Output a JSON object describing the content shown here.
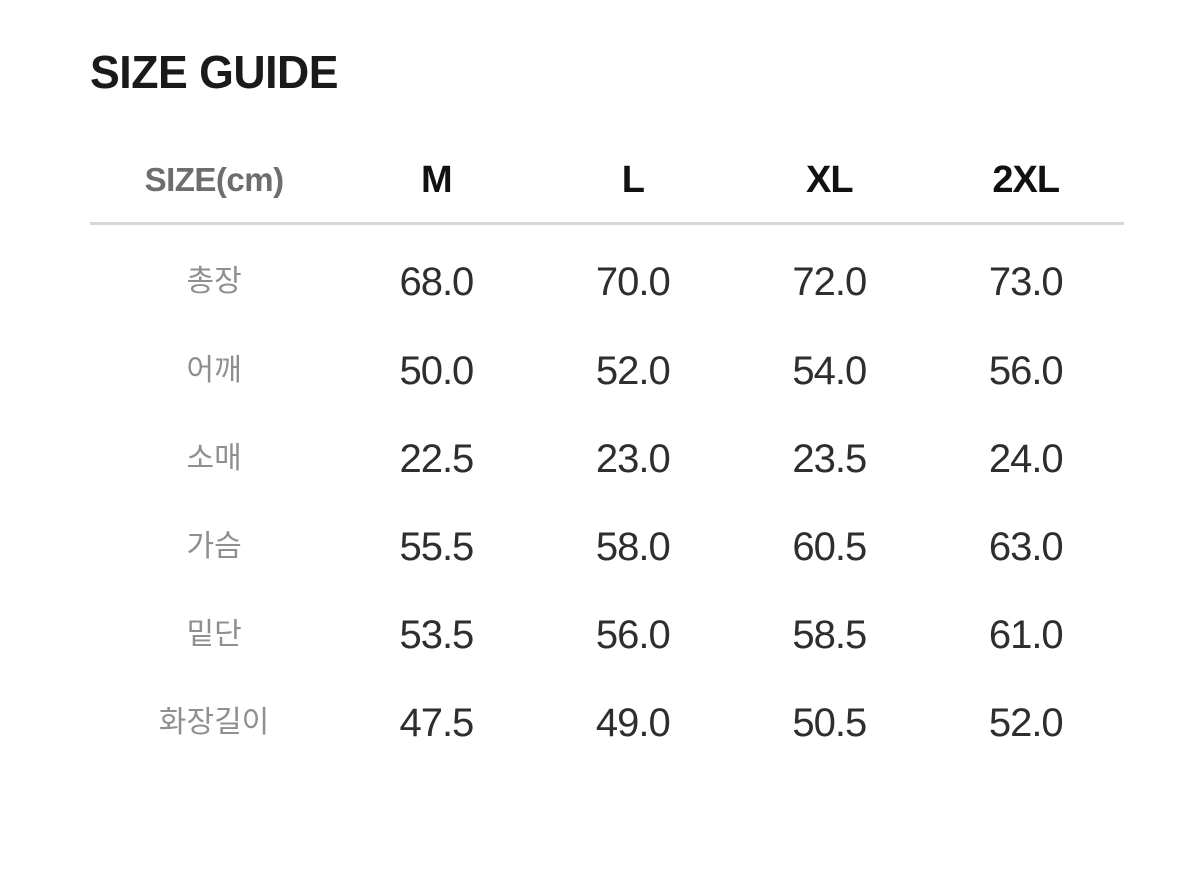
{
  "page": {
    "title": "SIZE GUIDE",
    "background_color": "#ffffff"
  },
  "colors": {
    "title_text": "#1a1a1a",
    "unit_header_text": "#6e6e6e",
    "size_header_text": "#111111",
    "row_label_text": "#8f8f8f",
    "value_text": "#2e2e2e",
    "divider": "#d8d8d8"
  },
  "size_table": {
    "unit_header": "SIZE(cm)",
    "size_columns": [
      "M",
      "L",
      "XL",
      "2XL"
    ],
    "rows": [
      {
        "label": "총장",
        "values": [
          "68.0",
          "70.0",
          "72.0",
          "73.0"
        ]
      },
      {
        "label": "어깨",
        "values": [
          "50.0",
          "52.0",
          "54.0",
          "56.0"
        ]
      },
      {
        "label": "소매",
        "values": [
          "22.5",
          "23.0",
          "23.5",
          "24.0"
        ]
      },
      {
        "label": "가슴",
        "values": [
          "55.5",
          "58.0",
          "60.5",
          "63.0"
        ]
      },
      {
        "label": "밑단",
        "values": [
          "53.5",
          "56.0",
          "58.5",
          "61.0"
        ]
      },
      {
        "label": "화장길이",
        "values": [
          "47.5",
          "49.0",
          "50.5",
          "52.0"
        ]
      }
    ]
  }
}
